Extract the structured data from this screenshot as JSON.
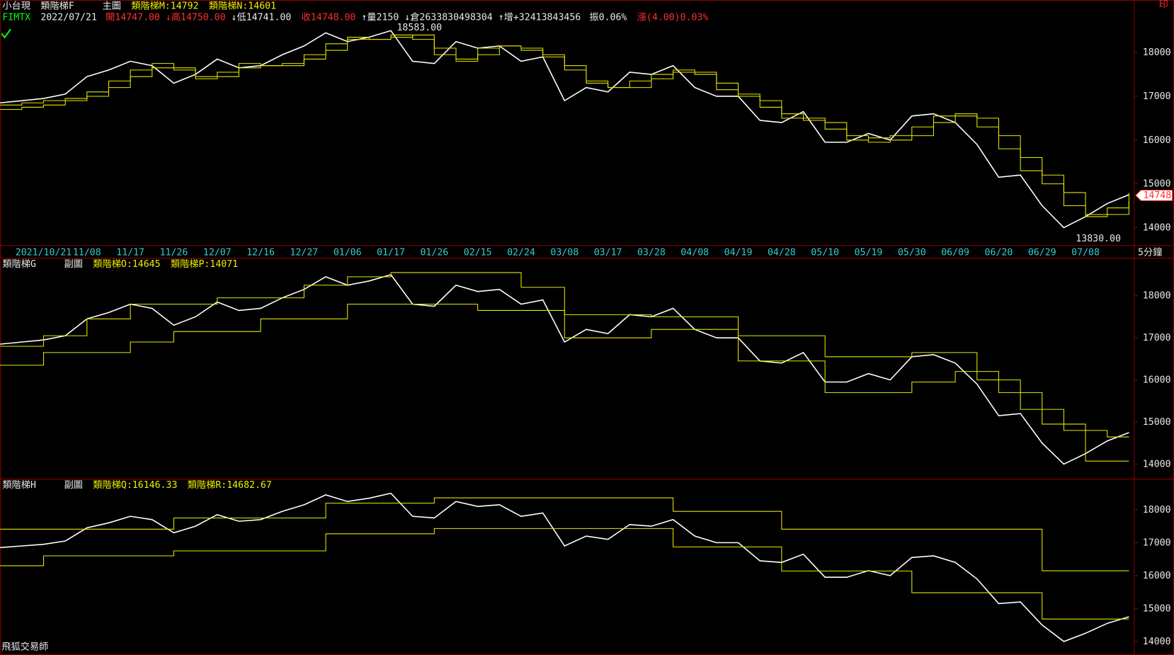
{
  "header": {
    "symbol": "小台現",
    "code": "FIMTX",
    "chart1_name": "類階梯F",
    "chart1_kind": "主圖",
    "date": "2022/07/21",
    "open": "開14747.00",
    "high": "↓高14750.00",
    "low": "↓低14741.00",
    "close": "收14748.00",
    "volume": "↑量2150",
    "position": "↓倉2633830498304",
    "increase": "↑增+32413843456",
    "amplitude": "振0.06%",
    "change": "漲(4.00)0.03%",
    "chart2_name": "類階梯G",
    "chart2_kind": "副圖",
    "chart3_name": "類階梯H",
    "chart3_kind": "副圖",
    "print": "印",
    "interval": "5分鐘",
    "brand": "飛狐交易師"
  },
  "chart_data": [
    {
      "type": "line",
      "step": true,
      "categories": [
        null,
        null,
        "2021/10/21",
        null,
        "11/08",
        null,
        "11/17",
        null,
        "11/26",
        null,
        "12/07",
        null,
        "12/16",
        null,
        "12/27",
        null,
        "01/06",
        null,
        "01/17",
        null,
        "01/26",
        null,
        "02/15",
        null,
        "02/24",
        null,
        "03/08",
        null,
        "03/17",
        null,
        "03/28",
        null,
        "04/08",
        null,
        "04/19",
        null,
        "04/28",
        null,
        "05/10",
        null,
        "05/19",
        null,
        "05/30",
        null,
        "06/09",
        null,
        "06/20",
        null,
        "06/29",
        null,
        "07/08",
        null,
        null
      ],
      "ylim": [
        13590,
        19200
      ],
      "yticks": [
        14000,
        15000,
        16000,
        17000,
        18000
      ],
      "annotations": {
        "high": "18583.00",
        "low": "13830.00",
        "last": "14748"
      },
      "series": [
        {
          "color": "#ffffff",
          "values": [
            16850,
            16900,
            16950,
            17050,
            17450,
            17600,
            17800,
            17700,
            17300,
            17500,
            17850,
            17650,
            17700,
            17950,
            18150,
            18450,
            18250,
            18350,
            18500,
            17800,
            17750,
            18250,
            18100,
            18150,
            17800,
            17900,
            16900,
            17200,
            17100,
            17550,
            17500,
            17700,
            17200,
            17000,
            17000,
            16450,
            16400,
            16650,
            15950,
            15950,
            16150,
            16000,
            16550,
            16600,
            16400,
            15900,
            15150,
            15200,
            14500,
            14000,
            14250,
            14550,
            14750
          ]
        },
        {
          "name": "類階梯M:14792",
          "color": "#e6e600",
          "values": [
            16800,
            16850,
            16900,
            16950,
            17100,
            17350,
            17600,
            17750,
            17600,
            17400,
            17550,
            17750,
            17700,
            17750,
            17950,
            18200,
            18350,
            18300,
            18400,
            18300,
            17950,
            17850,
            18100,
            18150,
            18050,
            17900,
            17600,
            17300,
            17200,
            17350,
            17500,
            17600,
            17500,
            17150,
            17000,
            16750,
            16500,
            16500,
            16250,
            16000,
            16050,
            16100,
            16300,
            16550,
            16550,
            16300,
            15800,
            15300,
            15000,
            14500,
            14250,
            14450,
            14792
          ]
        },
        {
          "name": "類階梯N:14601",
          "color": "#e6e600",
          "values": [
            16700,
            16750,
            16800,
            16900,
            17000,
            17200,
            17450,
            17650,
            17650,
            17450,
            17450,
            17650,
            17700,
            17700,
            17850,
            18050,
            18300,
            18300,
            18350,
            18400,
            18100,
            17800,
            17950,
            18150,
            18100,
            17950,
            17700,
            17350,
            17200,
            17200,
            17400,
            17550,
            17550,
            17300,
            17050,
            16900,
            16600,
            16450,
            16400,
            16100,
            15950,
            16000,
            16100,
            16400,
            16600,
            16500,
            16100,
            15600,
            15200,
            14800,
            14300,
            14300,
            14601
          ]
        }
      ]
    },
    {
      "type": "line",
      "step": true,
      "ylim": [
        13680,
        18890
      ],
      "yticks": [
        14000,
        15000,
        16000,
        17000,
        18000
      ],
      "series": [
        {
          "color": "#ffffff",
          "values": [
            16850,
            16900,
            16950,
            17050,
            17450,
            17600,
            17800,
            17700,
            17300,
            17500,
            17850,
            17650,
            17700,
            17950,
            18150,
            18450,
            18250,
            18350,
            18500,
            17800,
            17750,
            18250,
            18100,
            18150,
            17800,
            17900,
            16900,
            17200,
            17100,
            17550,
            17500,
            17700,
            17200,
            17000,
            17000,
            16450,
            16400,
            16650,
            15950,
            15950,
            16150,
            16000,
            16550,
            16600,
            16400,
            15900,
            15150,
            15200,
            14500,
            14000,
            14250,
            14550,
            14750
          ]
        },
        {
          "name": "類階梯O:14645",
          "color": "#e6e600",
          "values": [
            16800,
            16800,
            17050,
            17050,
            17450,
            17450,
            17800,
            17800,
            17800,
            17800,
            17950,
            17950,
            17950,
            17950,
            18250,
            18250,
            18450,
            18450,
            18550,
            18550,
            18550,
            18550,
            18550,
            18550,
            18200,
            18200,
            17550,
            17550,
            17550,
            17550,
            17500,
            17500,
            17500,
            17500,
            17050,
            17050,
            17050,
            17050,
            16550,
            16550,
            16550,
            16550,
            16650,
            16650,
            16650,
            16000,
            16000,
            15300,
            15300,
            14800,
            14800,
            14645,
            14645
          ]
        },
        {
          "name": "類階梯P:14071",
          "color": "#e6e600",
          "values": [
            16350,
            16350,
            16650,
            16650,
            16650,
            16650,
            16900,
            16900,
            17150,
            17150,
            17150,
            17150,
            17450,
            17450,
            17450,
            17450,
            17800,
            17800,
            17800,
            17800,
            17800,
            17800,
            17650,
            17650,
            17650,
            17650,
            17000,
            17000,
            17000,
            17000,
            17200,
            17200,
            17200,
            17200,
            16450,
            16450,
            16450,
            16450,
            15700,
            15700,
            15700,
            15700,
            15950,
            15950,
            16200,
            16200,
            15700,
            15700,
            14950,
            14950,
            14071,
            14071,
            14071
          ]
        }
      ]
    },
    {
      "type": "line",
      "step": true,
      "ylim": [
        13590,
        18930
      ],
      "yticks": [
        14000,
        15000,
        16000,
        17000,
        18000
      ],
      "series": [
        {
          "color": "#ffffff",
          "values": [
            16850,
            16900,
            16950,
            17050,
            17450,
            17600,
            17800,
            17700,
            17300,
            17500,
            17850,
            17650,
            17700,
            17950,
            18150,
            18450,
            18250,
            18350,
            18500,
            17800,
            17750,
            18250,
            18100,
            18150,
            17800,
            17900,
            16900,
            17200,
            17100,
            17550,
            17500,
            17700,
            17200,
            17000,
            17000,
            16450,
            16400,
            16650,
            15950,
            15950,
            16150,
            16000,
            16550,
            16600,
            16400,
            15900,
            15150,
            15200,
            14500,
            14000,
            14250,
            14550,
            14750
          ]
        },
        {
          "name": "類階梯Q:16146.33",
          "color": "#e6e600",
          "values": [
            17410,
            17410,
            17410,
            17410,
            17410,
            17410,
            17410,
            17410,
            17750,
            17750,
            17750,
            17750,
            17750,
            17750,
            17750,
            18200,
            18200,
            18200,
            18200,
            18200,
            18360,
            18360,
            18360,
            18360,
            18360,
            18360,
            18360,
            18360,
            18360,
            18360,
            18360,
            17950,
            17950,
            17950,
            17950,
            17950,
            17410,
            17410,
            17410,
            17410,
            17410,
            17410,
            17410,
            17410,
            17410,
            17410,
            17410,
            17410,
            16146.33,
            16146.33,
            16146.33,
            16146.33,
            16146.33
          ]
        },
        {
          "name": "類階梯R:14682.67",
          "color": "#e6e600",
          "values": [
            16300,
            16300,
            16600,
            16600,
            16600,
            16600,
            16600,
            16600,
            16750,
            16750,
            16750,
            16750,
            16750,
            16750,
            16750,
            17270,
            17270,
            17270,
            17270,
            17270,
            17430,
            17430,
            17430,
            17430,
            17430,
            17430,
            17430,
            17430,
            17430,
            17430,
            17430,
            16870,
            16870,
            16870,
            16870,
            16870,
            16140,
            16140,
            16140,
            16140,
            16140,
            16140,
            15480,
            15480,
            15480,
            15480,
            15480,
            15480,
            14682.67,
            14682.67,
            14682.67,
            14682.67,
            14682.67
          ]
        }
      ]
    }
  ]
}
